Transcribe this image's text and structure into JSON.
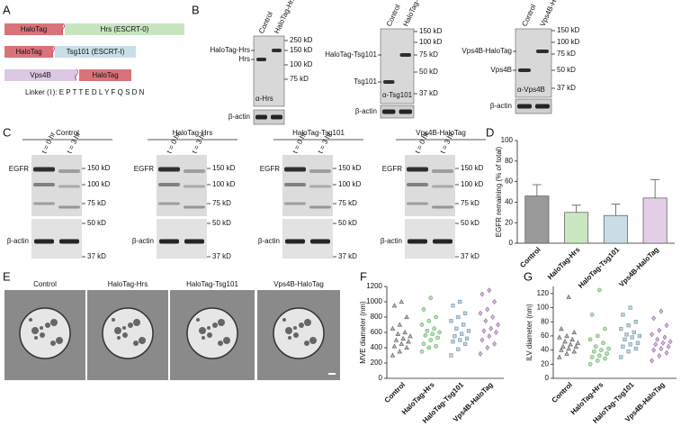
{
  "panel_labels": [
    "A",
    "B",
    "C",
    "D",
    "E",
    "F",
    "G"
  ],
  "constructs": {
    "hrs": {
      "tag": "HaloTag",
      "protein": "Hrs (ESCRT-0)"
    },
    "tsg101": {
      "tag": "HaloTag",
      "protein": "Tsg101 (ESCRT-I)"
    },
    "vps4b": {
      "protein": "Vps4B",
      "tag": "HaloTag"
    },
    "linker": "Linker (⌇): E P T T E D L Y F Q S D N"
  },
  "blots_b": [
    {
      "lanes": [
        "Control",
        "HaloTag-Hrs"
      ],
      "bands": [
        "HaloTag-Hrs",
        "Hrs"
      ],
      "markers": [
        "250 kD",
        "150 kD",
        "100 kD",
        "75 kD"
      ],
      "antibody": "α-Hrs",
      "loading": "β-actin"
    },
    {
      "lanes": [
        "Control",
        "HaloTag-Tsg101"
      ],
      "bands": [
        "HaloTag-Tsg101",
        "Tsg101"
      ],
      "markers": [
        "150 kD",
        "100 kD",
        "75 kD",
        "50 kD",
        "37 kD"
      ],
      "antibody": "α-Tsg101",
      "loading": "β-actin"
    },
    {
      "lanes": [
        "Control",
        "Vps4B-HaloTag"
      ],
      "bands": [
        "Vps4B-HaloTag",
        "Vps4B"
      ],
      "markers": [
        "150 kD",
        "100 kD",
        "75 kD",
        "50 kD",
        "37 kD"
      ],
      "antibody": "α-Vps4B",
      "loading": "β-actin"
    }
  ],
  "blots_c": [
    {
      "title": "Control",
      "lanes": [
        "t = 0 hr",
        "t = 3 hr"
      ],
      "band": "EGFR",
      "markers": [
        "150 kD",
        "100 kD",
        "75 kD",
        "50 kD",
        "37 kD"
      ],
      "loading": "β-actin"
    },
    {
      "title": "HaloTag-Hrs",
      "lanes": [
        "t = 0 hr",
        "t = 3 hr"
      ],
      "band": "EGFR",
      "markers": [
        "150 kD",
        "100 kD",
        "75 kD",
        "50 kD",
        "37 kD"
      ],
      "loading": "β-actin"
    },
    {
      "title": "HaloTag-Tsg101",
      "lanes": [
        "t = 0 hr",
        "t = 3 hr"
      ],
      "band": "EGFR",
      "markers": [
        "150 kD",
        "100 kD",
        "75 kD",
        "50 kD",
        "37 kD"
      ],
      "loading": "β-actin"
    },
    {
      "title": "Vps4B-HaloTag",
      "lanes": [
        "t = 0 hr",
        "t = 3 hr"
      ],
      "band": "EGFR",
      "markers": [
        "150 kD",
        "100 kD",
        "75 kD",
        "50 kD",
        "37 kD"
      ],
      "loading": "β-actin"
    }
  ],
  "em_labels": [
    "Control",
    "HaloTag-Hrs",
    "HaloTag-Tsg101",
    "Vps4B-HaloTag"
  ],
  "chart_data": [
    {
      "type": "bar",
      "ylabel": "EGFR remaining (% of total)",
      "categories": [
        "Control",
        "HaloTag-Hrs",
        "HaloTag-Tsg101",
        "Vps4B-HaloTag"
      ],
      "values": [
        46,
        30,
        27,
        44
      ],
      "errors": [
        11,
        7,
        11,
        18
      ],
      "colors": [
        "#9a9a9a",
        "#c9e7c1",
        "#c8dde6",
        "#e3cde7"
      ],
      "ylim": [
        0,
        100
      ],
      "yticks": [
        0,
        20,
        40,
        60,
        80,
        100
      ]
    },
    {
      "type": "scatter",
      "ylabel": "MVE diameter (nm)",
      "categories": [
        "Control",
        "HaloTag-Hrs",
        "HaloTag-Tsg101",
        "Vps4B-HaloTag"
      ],
      "series": [
        {
          "name": "Control",
          "color": "#666666",
          "marker": "triangle",
          "values": [
            300,
            350,
            400,
            420,
            450,
            480,
            500,
            520,
            550,
            580,
            600,
            650,
            700,
            800,
            950,
            1000
          ]
        },
        {
          "name": "HaloTag-Hrs",
          "color": "#6bb36b",
          "marker": "circle",
          "values": [
            350,
            400,
            420,
            450,
            500,
            530,
            560,
            580,
            600,
            620,
            650,
            700,
            750,
            800,
            900,
            1050
          ]
        },
        {
          "name": "HaloTag-Tsg101",
          "color": "#7a9cb0",
          "marker": "square",
          "values": [
            300,
            380,
            450,
            480,
            500,
            520,
            550,
            580,
            620,
            650,
            700,
            750,
            800,
            850,
            950,
            1000
          ]
        },
        {
          "name": "Vps4B-HaloTag",
          "color": "#a070a8",
          "marker": "diamond",
          "values": [
            320,
            400,
            450,
            500,
            550,
            600,
            620,
            650,
            700,
            750,
            800,
            850,
            900,
            1000,
            1100,
            1150
          ]
        }
      ],
      "ylim": [
        0,
        1200
      ],
      "yticks": [
        0,
        200,
        400,
        600,
        800,
        1000,
        1200
      ]
    },
    {
      "type": "scatter",
      "ylabel": "ILV diameter (nm)",
      "categories": [
        "Control",
        "HaloTag-Hrs",
        "HaloTag-Tsg101",
        "Vps4B-HaloTag"
      ],
      "series": [
        {
          "name": "Control",
          "color": "#666666",
          "marker": "triangle",
          "values": [
            30,
            35,
            38,
            40,
            42,
            45,
            45,
            48,
            50,
            52,
            55,
            58,
            60,
            65,
            70,
            115
          ]
        },
        {
          "name": "HaloTag-Hrs",
          "color": "#6bb36b",
          "marker": "circle",
          "values": [
            20,
            25,
            28,
            30,
            32,
            35,
            38,
            40,
            42,
            45,
            50,
            55,
            60,
            70,
            90,
            125
          ]
        },
        {
          "name": "HaloTag-Tsg101",
          "color": "#7a9cb0",
          "marker": "square",
          "values": [
            30,
            38,
            42,
            45,
            48,
            50,
            55,
            58,
            60,
            62,
            65,
            70,
            75,
            80,
            90,
            100
          ]
        },
        {
          "name": "Vps4B-HaloTag",
          "color": "#a070a8",
          "marker": "diamond",
          "values": [
            25,
            32,
            36,
            40,
            42,
            45,
            48,
            50,
            52,
            55,
            58,
            62,
            68,
            75,
            85,
            95
          ]
        }
      ],
      "ylim": [
        0,
        130
      ],
      "yticks": [
        0,
        20,
        40,
        60,
        80,
        100,
        120
      ]
    }
  ]
}
